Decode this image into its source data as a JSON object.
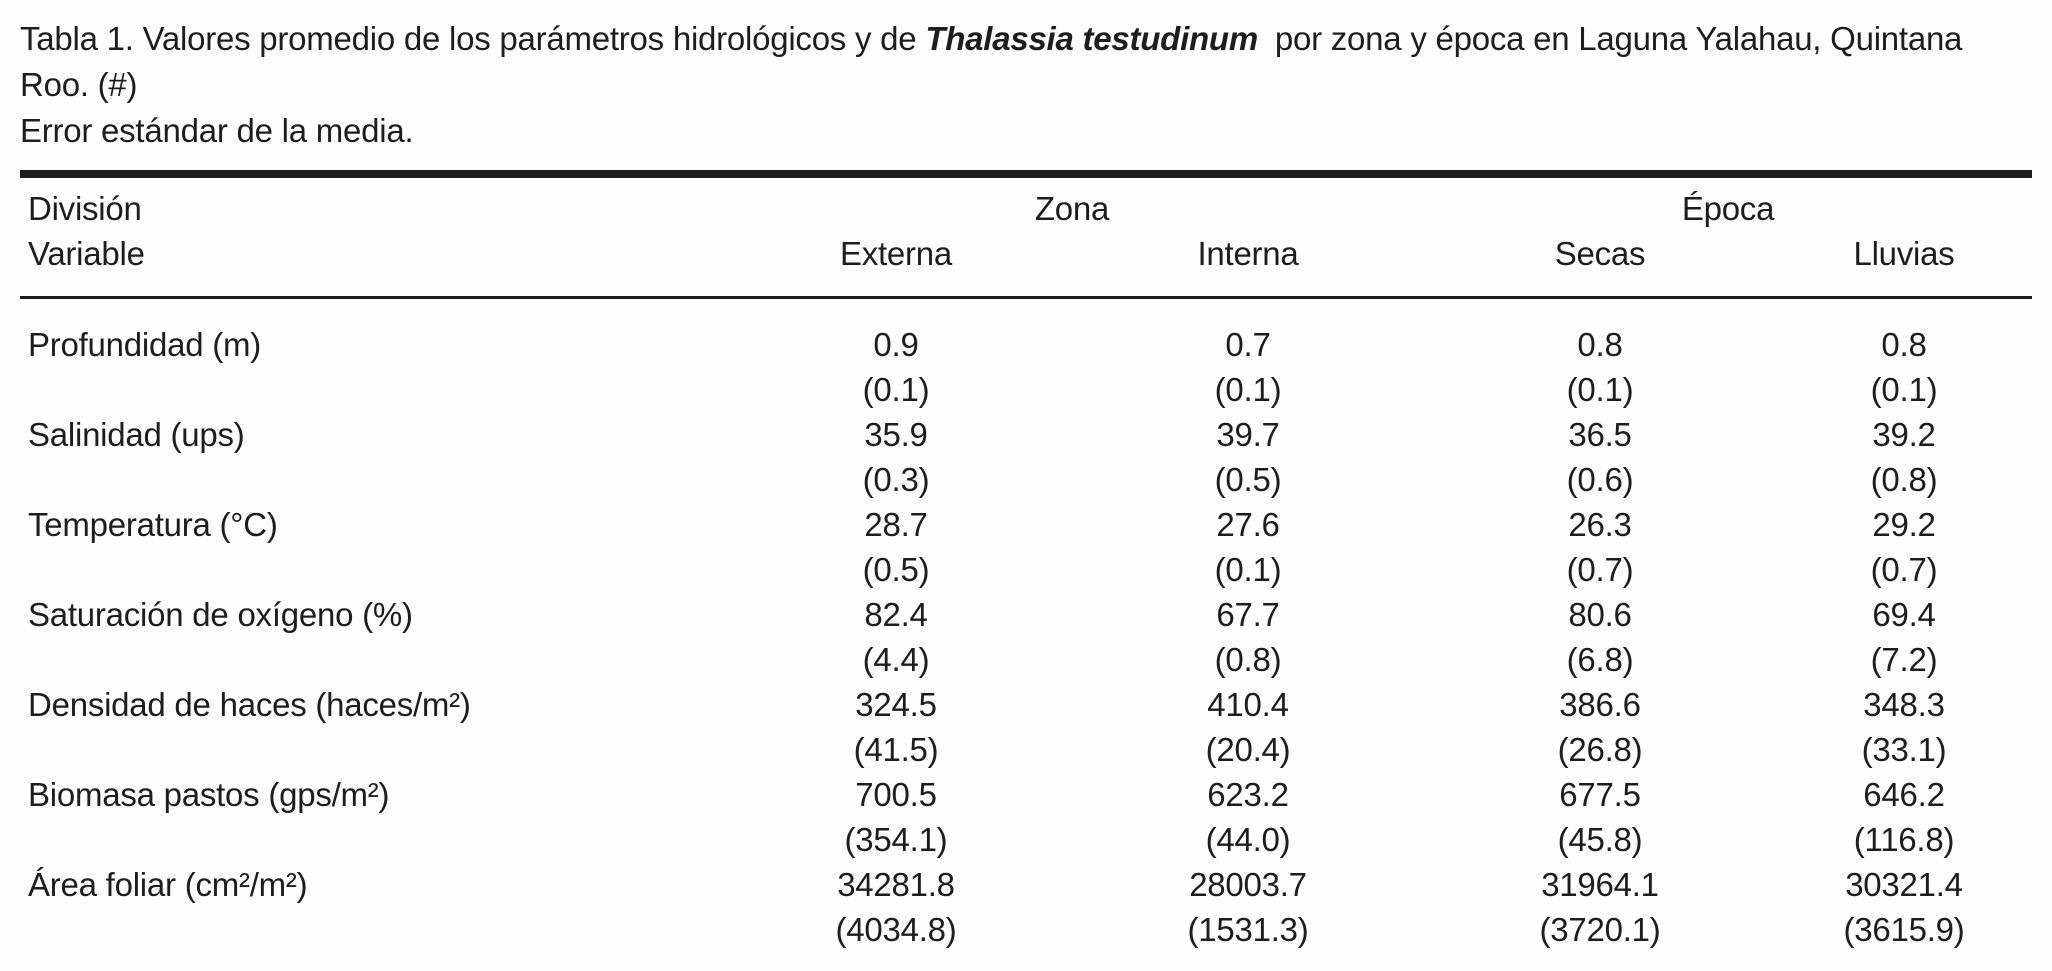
{
  "caption": {
    "line1_prefix": "Tabla 1. Valores promedio de los parámetros hidrológicos y de ",
    "species": "Thalassia testudinum",
    "line1_suffix": " por zona y época en Laguna Yalahau, Quintana Roo. (#)",
    "line2": "Error estándar de la media."
  },
  "table": {
    "header": {
      "division_label": "División",
      "variable_label": "Variable",
      "group_zona": "Zona",
      "group_epoca": "Época",
      "col_externa": "Externa",
      "col_interna": "Interna",
      "col_secas": "Secas",
      "col_lluvias": "Lluvias"
    },
    "rows": [
      {
        "variable": "Profundidad (m)",
        "values": [
          "0.9",
          "0.7",
          "0.8",
          "0.8"
        ],
        "errors": [
          "(0.1)",
          "(0.1)",
          "(0.1)",
          "(0.1)"
        ]
      },
      {
        "variable": "Salinidad (ups)",
        "values": [
          "35.9",
          "39.7",
          "36.5",
          "39.2"
        ],
        "errors": [
          "(0.3)",
          "(0.5)",
          "(0.6)",
          "(0.8)"
        ]
      },
      {
        "variable": "Temperatura (°C)",
        "values": [
          "28.7",
          "27.6",
          "26.3",
          "29.2"
        ],
        "errors": [
          "(0.5)",
          "(0.1)",
          "(0.7)",
          "(0.7)"
        ]
      },
      {
        "variable": "Saturación de oxígeno (%)",
        "values": [
          "82.4",
          "67.7",
          "80.6",
          "69.4"
        ],
        "errors": [
          "(4.4)",
          "(0.8)",
          "(6.8)",
          "(7.2)"
        ]
      },
      {
        "variable": "Densidad de haces (haces/m²)",
        "values": [
          "324.5",
          "410.4",
          "386.6",
          "348.3"
        ],
        "errors": [
          "(41.5)",
          "(20.4)",
          "(26.8)",
          "(33.1)"
        ]
      },
      {
        "variable": "Biomasa pastos (gps/m²)",
        "values": [
          "700.5",
          "623.2",
          "677.5",
          "646.2"
        ],
        "errors": [
          "(354.1)",
          "(44.0)",
          "(45.8)",
          "(116.8)"
        ]
      },
      {
        "variable": "Área foliar (cm²/m²)",
        "values": [
          "34281.8",
          "28003.7",
          "31964.1",
          "30321.4"
        ],
        "errors": [
          "(4034.8)",
          "(1531.3)",
          "(3720.1)",
          "(3615.9)"
        ]
      }
    ]
  },
  "colors": {
    "text": "#1d1d1d",
    "background": "#fdfdfd",
    "rule": "#1d1d1d"
  }
}
